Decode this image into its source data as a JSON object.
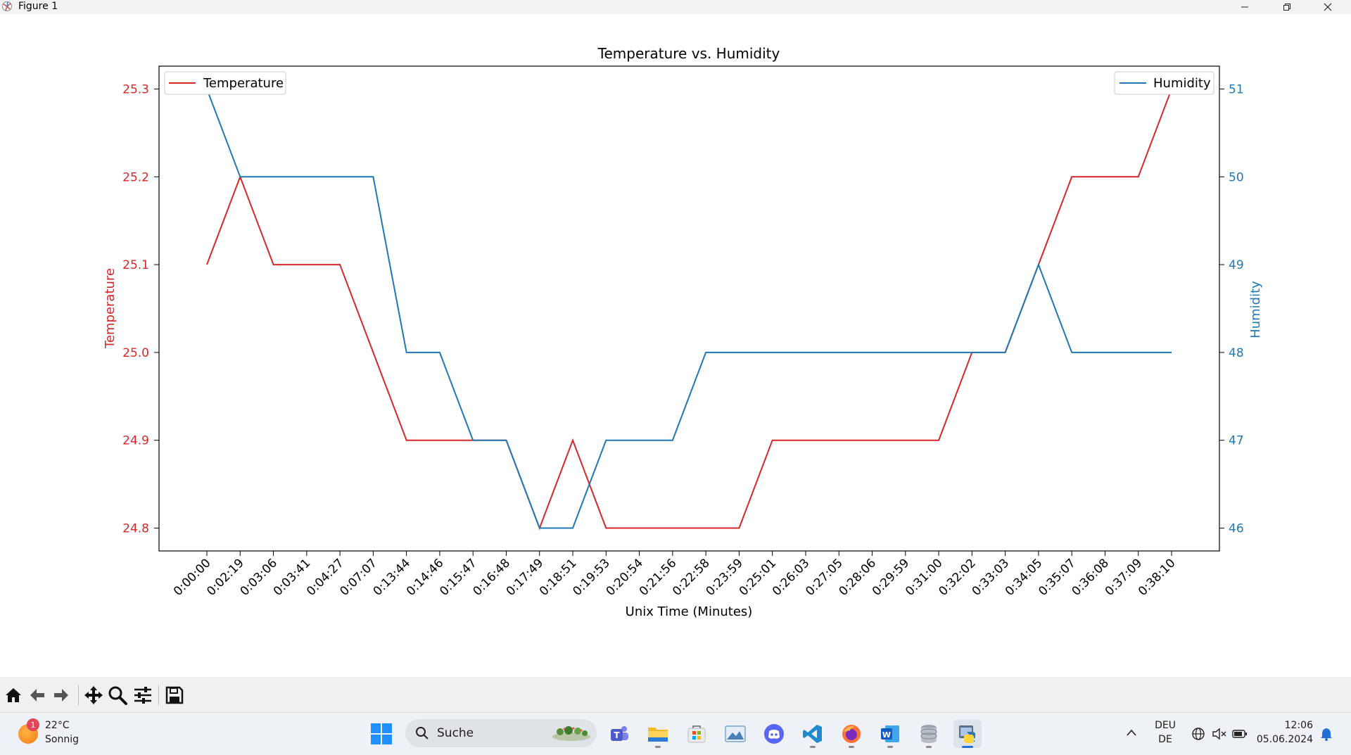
{
  "window": {
    "title": "Figure 1"
  },
  "chart_data": {
    "type": "line",
    "title": "Temperature vs. Humidity",
    "xlabel": "Unix Time (Minutes)",
    "categories": [
      "0:00:00",
      "0:02:19",
      "0:03:06",
      "0:03:41",
      "0:04:27",
      "0:07:07",
      "0:13:44",
      "0:14:46",
      "0:15:47",
      "0:16:48",
      "0:17:49",
      "0:18:51",
      "0:19:53",
      "0:20:54",
      "0:21:56",
      "0:22:58",
      "0:23:59",
      "0:25:01",
      "0:26:03",
      "0:27:05",
      "0:28:06",
      "0:29:59",
      "0:31:00",
      "0:32:02",
      "0:33:03",
      "0:34:05",
      "0:35:07",
      "0:36:08",
      "0:37:09",
      "0:38:10"
    ],
    "left_axis": {
      "label": "Temperature",
      "color": "#d62728",
      "ylim": [
        24.774,
        25.326
      ],
      "ticks": [
        "24.8",
        "24.9",
        "25.0",
        "25.1",
        "25.2",
        "25.3"
      ]
    },
    "right_axis": {
      "label": "Humidity",
      "color": "#1f77b4",
      "ylim": [
        45.74,
        51.26
      ],
      "ticks": [
        "46",
        "47",
        "48",
        "49",
        "50",
        "51"
      ]
    },
    "series": [
      {
        "name": "Temperature",
        "axis": "left",
        "color": "#d62728",
        "legend": "top-left",
        "values": [
          25.1,
          25.2,
          25.1,
          25.1,
          25.1,
          25.0,
          24.9,
          24.9,
          24.9,
          24.9,
          24.8,
          24.9,
          24.8,
          24.8,
          24.8,
          24.8,
          24.8,
          24.9,
          24.9,
          24.9,
          24.9,
          24.9,
          24.9,
          25.0,
          25.0,
          25.1,
          25.2,
          25.2,
          25.2,
          25.3
        ]
      },
      {
        "name": "Humidity",
        "axis": "right",
        "color": "#1f77b4",
        "legend": "top-right",
        "values": [
          51,
          50,
          50,
          50,
          50,
          50,
          48,
          48,
          47,
          47,
          46,
          46,
          47,
          47,
          47,
          48,
          48,
          48,
          48,
          48,
          48,
          48,
          48,
          48,
          48,
          49,
          48,
          48,
          48,
          48
        ]
      }
    ]
  },
  "toolbar": {
    "buttons": [
      {
        "name": "home-button",
        "icon": "home-icon"
      },
      {
        "name": "back-button",
        "icon": "arrow-left-icon"
      },
      {
        "name": "forward-button",
        "icon": "arrow-right-icon"
      },
      {
        "name": "pan-button",
        "icon": "move-icon"
      },
      {
        "name": "zoom-button",
        "icon": "magnifier-icon"
      },
      {
        "name": "configure-subplots-button",
        "icon": "sliders-icon"
      },
      {
        "name": "save-button",
        "icon": "floppy-icon"
      }
    ]
  },
  "taskbar": {
    "weather": {
      "badge": "1",
      "temp": "22°C",
      "desc": "Sonnig"
    },
    "search": {
      "placeholder": "Suche"
    },
    "apps": [
      "teams",
      "file-explorer",
      "store",
      "photos",
      "discord",
      "vscode",
      "firefox",
      "word",
      "database",
      "python"
    ],
    "tray": {
      "lang_top": "DEU",
      "lang_bottom": "DE",
      "time": "12:06",
      "date": "05.06.2024"
    }
  }
}
